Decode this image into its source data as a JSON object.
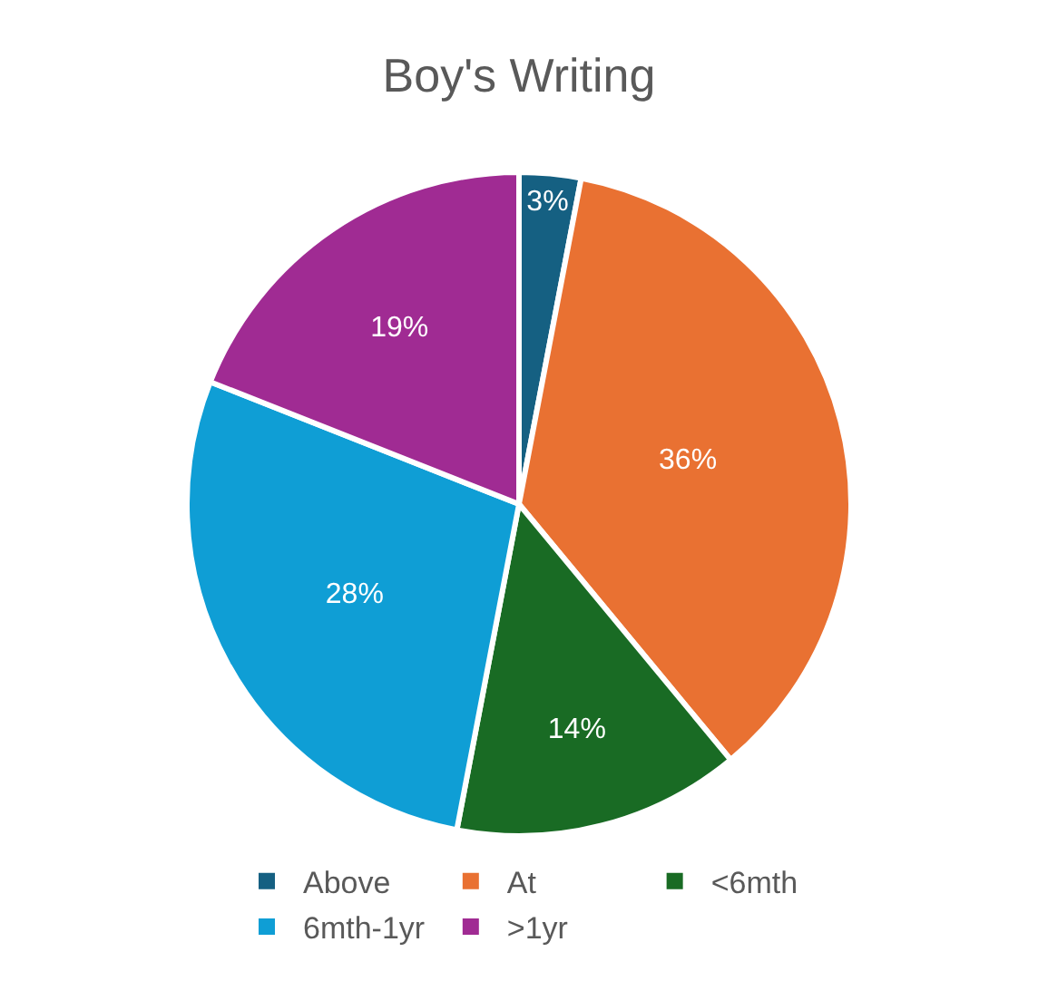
{
  "chart_data": {
    "type": "pie",
    "title": "Boy's Writing",
    "categories": [
      "Above",
      "At",
      "<6mth",
      "6mth-1yr",
      ">1yr"
    ],
    "values": [
      3,
      36,
      14,
      28,
      19
    ],
    "value_labels": [
      "3%",
      "36%",
      "14%",
      "28%",
      "19%"
    ],
    "colors": [
      "#156082",
      "#e97132",
      "#196b24",
      "#0f9ed5",
      "#a02b93"
    ],
    "legend": "bottom"
  }
}
